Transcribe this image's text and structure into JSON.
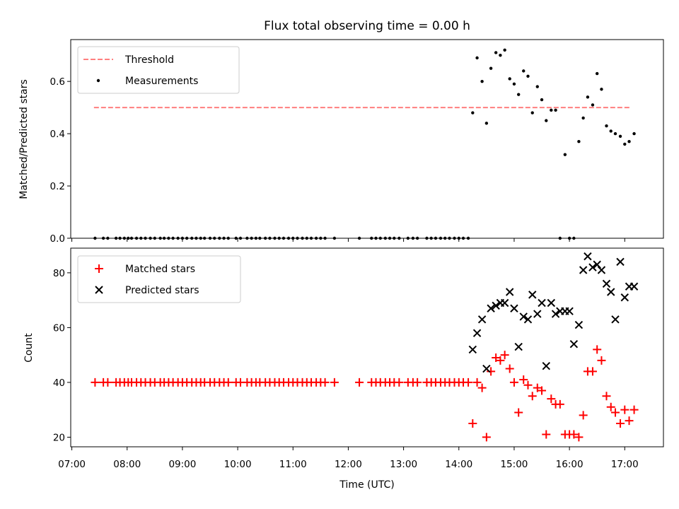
{
  "title": "Flux total observing time = 0.00 h",
  "chart_data": [
    {
      "type": "scatter",
      "panel": "top",
      "ylabel": "Matched/Predicted stars",
      "ylim": [
        0,
        0.76
      ],
      "yticks": [
        "0.0",
        "0.2",
        "0.4",
        "0.6"
      ],
      "ytick_values": [
        0,
        0.2,
        0.4,
        0.6
      ],
      "threshold": {
        "name": "Threshold",
        "value": 0.5,
        "x": [
          7.4,
          17.1
        ],
        "color": "#ff7f7f"
      },
      "measurements": {
        "name": "Measurements",
        "color": "#000000",
        "x": [
          7.42,
          7.57,
          7.65,
          7.8,
          7.87,
          7.95,
          8.02,
          8.08,
          8.17,
          8.25,
          8.33,
          8.42,
          8.5,
          8.6,
          8.67,
          8.75,
          8.83,
          8.92,
          9.0,
          9.08,
          9.17,
          9.25,
          9.33,
          9.4,
          9.5,
          9.58,
          9.67,
          9.75,
          9.83,
          9.97,
          10.05,
          10.17,
          10.25,
          10.33,
          10.4,
          10.5,
          10.58,
          10.67,
          10.75,
          10.83,
          10.92,
          11.0,
          11.08,
          11.17,
          11.25,
          11.33,
          11.42,
          11.5,
          11.58,
          11.75,
          12.2,
          12.42,
          12.5,
          12.58,
          12.67,
          12.75,
          12.83,
          12.92,
          13.08,
          13.17,
          13.25,
          13.42,
          13.5,
          13.58,
          13.67,
          13.75,
          13.83,
          13.92,
          14.0,
          14.08,
          14.17,
          14.25,
          14.33,
          14.42,
          14.5,
          14.58,
          14.67,
          14.75,
          14.83,
          14.92,
          15.0,
          15.08,
          15.17,
          15.25,
          15.33,
          15.42,
          15.5,
          15.58,
          15.67,
          15.75,
          15.83,
          15.92,
          16.0,
          16.08,
          16.17,
          16.25,
          16.33,
          16.42,
          16.5,
          16.58,
          16.67,
          16.75,
          16.83,
          16.92,
          17.0,
          17.08,
          17.17
        ],
        "y": [
          0,
          0,
          0,
          0,
          0,
          0,
          0,
          0,
          0,
          0,
          0,
          0,
          0,
          0,
          0,
          0,
          0,
          0,
          0,
          0,
          0,
          0,
          0,
          0,
          0,
          0,
          0,
          0,
          0,
          0,
          0,
          0,
          0,
          0,
          0,
          0,
          0,
          0,
          0,
          0,
          0,
          0,
          0,
          0,
          0,
          0,
          0,
          0,
          0,
          0,
          0,
          0,
          0,
          0,
          0,
          0,
          0,
          0,
          0,
          0,
          0,
          0,
          0,
          0,
          0,
          0,
          0,
          0,
          0,
          0,
          0,
          0.48,
          0.69,
          0.6,
          0.44,
          0.65,
          0.71,
          0.7,
          0.72,
          0.61,
          0.59,
          0.55,
          0.64,
          0.62,
          0.48,
          0.58,
          0.53,
          0.45,
          0.49,
          0.49,
          0,
          0.32,
          0,
          0,
          0.37,
          0.46,
          0.54,
          0.51,
          0.63,
          0.57,
          0.43,
          0.41,
          0.4,
          0.39,
          0.36,
          0.37,
          0.4
        ]
      },
      "legend": [
        "Threshold",
        "Measurements"
      ],
      "legend_loc": "upper-left"
    },
    {
      "type": "scatter",
      "panel": "bottom",
      "xlabel": "Time (UTC)",
      "ylabel": "Count",
      "xlim": [
        6.98,
        17.7
      ],
      "ylim": [
        16.5,
        89
      ],
      "xticks": [
        "07:00",
        "08:00",
        "09:00",
        "10:00",
        "11:00",
        "12:00",
        "13:00",
        "14:00",
        "15:00",
        "16:00",
        "17:00"
      ],
      "xtick_values": [
        7,
        8,
        9,
        10,
        11,
        12,
        13,
        14,
        15,
        16,
        17
      ],
      "yticks": [
        "20",
        "40",
        "60",
        "80"
      ],
      "ytick_values": [
        20,
        40,
        60,
        80
      ],
      "series": [
        {
          "name": "Matched stars",
          "marker": "+",
          "color": "#ff0000",
          "x": [
            7.42,
            7.57,
            7.65,
            7.8,
            7.87,
            7.95,
            8.02,
            8.08,
            8.17,
            8.25,
            8.33,
            8.42,
            8.5,
            8.6,
            8.67,
            8.75,
            8.83,
            8.92,
            9.0,
            9.08,
            9.17,
            9.25,
            9.33,
            9.4,
            9.5,
            9.58,
            9.67,
            9.75,
            9.83,
            9.97,
            10.05,
            10.17,
            10.25,
            10.33,
            10.4,
            10.5,
            10.58,
            10.67,
            10.75,
            10.83,
            10.92,
            11.0,
            11.08,
            11.17,
            11.25,
            11.33,
            11.42,
            11.5,
            11.58,
            11.75,
            12.2,
            12.42,
            12.5,
            12.58,
            12.67,
            12.75,
            12.83,
            12.92,
            13.08,
            13.17,
            13.25,
            13.42,
            13.5,
            13.58,
            13.67,
            13.75,
            13.83,
            13.92,
            14.0,
            14.08,
            14.17,
            14.25,
            14.33,
            14.42,
            14.5,
            14.58,
            14.67,
            14.75,
            14.83,
            14.92,
            15.0,
            15.08,
            15.17,
            15.25,
            15.33,
            15.42,
            15.5,
            15.58,
            15.67,
            15.75,
            15.83,
            15.92,
            16.0,
            16.08,
            16.17,
            16.25,
            16.33,
            16.42,
            16.5,
            16.58,
            16.67,
            16.75,
            16.83,
            16.92,
            17.0,
            17.08,
            17.17
          ],
          "y": [
            40,
            40,
            40,
            40,
            40,
            40,
            40,
            40,
            40,
            40,
            40,
            40,
            40,
            40,
            40,
            40,
            40,
            40,
            40,
            40,
            40,
            40,
            40,
            40,
            40,
            40,
            40,
            40,
            40,
            40,
            40,
            40,
            40,
            40,
            40,
            40,
            40,
            40,
            40,
            40,
            40,
            40,
            40,
            40,
            40,
            40,
            40,
            40,
            40,
            40,
            40,
            40,
            40,
            40,
            40,
            40,
            40,
            40,
            40,
            40,
            40,
            40,
            40,
            40,
            40,
            40,
            40,
            40,
            40,
            40,
            40,
            25,
            40,
            38,
            20,
            44,
            49,
            48,
            50,
            45,
            40,
            29,
            41,
            39,
            35,
            38,
            37,
            21,
            34,
            32,
            32,
            21,
            21,
            21,
            20,
            28,
            44,
            44,
            52,
            48,
            35,
            31,
            29,
            25,
            30,
            26,
            30
          ]
        },
        {
          "name": "Predicted stars",
          "marker": "x",
          "color": "#000000",
          "x": [
            14.25,
            14.33,
            14.42,
            14.5,
            14.58,
            14.67,
            14.75,
            14.83,
            14.92,
            15.0,
            15.08,
            15.17,
            15.25,
            15.33,
            15.42,
            15.5,
            15.58,
            15.67,
            15.75,
            15.83,
            15.92,
            16.0,
            16.08,
            16.17,
            16.25,
            16.33,
            16.42,
            16.5,
            16.58,
            16.67,
            16.75,
            16.83,
            16.92,
            17.0,
            17.08,
            17.17
          ],
          "y": [
            52,
            58,
            63,
            45,
            67,
            68,
            69,
            69,
            73,
            67,
            53,
            64,
            63,
            72,
            65,
            69,
            46,
            69,
            65,
            66,
            66,
            66,
            54,
            61,
            81,
            86,
            82,
            83,
            81,
            76,
            73,
            63,
            84,
            71,
            75,
            75
          ]
        }
      ],
      "legend": [
        "Matched stars",
        "Predicted stars"
      ],
      "legend_loc": "upper-left"
    }
  ]
}
